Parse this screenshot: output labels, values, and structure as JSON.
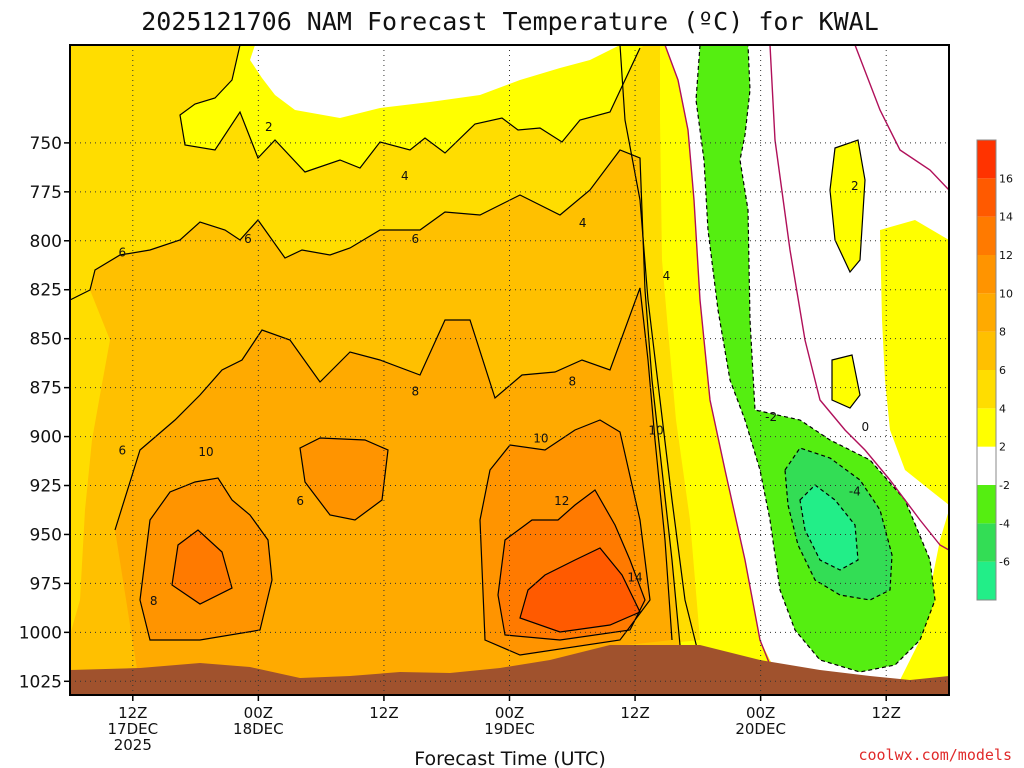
{
  "chart_data": {
    "type": "time-height contour",
    "title": "2025121706 NAM Forecast Temperature (ºC) for KWAL",
    "xlabel": "Forecast Time (UTC)",
    "ylabel": "",
    "y_axis": {
      "units": "hPa",
      "range": [
        700,
        1032
      ],
      "ticks": [
        750,
        775,
        800,
        825,
        850,
        875,
        900,
        925,
        950,
        975,
        1000,
        1025
      ]
    },
    "x_axis": {
      "range_hours": [
        0,
        84
      ],
      "ticks": [
        {
          "hour": 6,
          "lines": [
            "12Z",
            "17DEC",
            "2025"
          ]
        },
        {
          "hour": 18,
          "lines": [
            "00Z",
            "18DEC"
          ]
        },
        {
          "hour": 30,
          "lines": [
            "12Z"
          ]
        },
        {
          "hour": 42,
          "lines": [
            "00Z",
            "19DEC"
          ]
        },
        {
          "hour": 54,
          "lines": [
            "12Z"
          ]
        },
        {
          "hour": 66,
          "lines": [
            "00Z",
            "20DEC"
          ]
        },
        {
          "hour": 78,
          "lines": [
            "12Z"
          ]
        }
      ]
    },
    "colorbar": {
      "levels": [
        -6,
        -4,
        -2,
        2,
        4,
        6,
        8,
        10,
        12,
        14,
        16
      ],
      "bins": [
        {
          "range": "<-6",
          "color": "#22ee88"
        },
        {
          "range": "-6 to -4",
          "color": "#33dd55"
        },
        {
          "range": "-4 to -2",
          "color": "#55ee11"
        },
        {
          "range": "-2 to 2",
          "color": "#ffffff"
        },
        {
          "range": "2 to 4",
          "color": "#ffff00"
        },
        {
          "range": "4 to 6",
          "color": "#ffdd00"
        },
        {
          "range": "6 to 8",
          "color": "#ffc000"
        },
        {
          "range": "8 to 10",
          "color": "#ffaa00"
        },
        {
          "range": "10 to 12",
          "color": "#ff9400"
        },
        {
          "range": "12 to 14",
          "color": "#ff7a00"
        },
        {
          "range": "14 to 16",
          "color": "#ff5a00"
        },
        {
          "range": ">16",
          "color": "#ff3300"
        }
      ]
    },
    "contour_labels": [
      {
        "text": "2",
        "hour": 19,
        "p": 742
      },
      {
        "text": "4",
        "hour": 32,
        "p": 767
      },
      {
        "text": "6",
        "hour": 5,
        "p": 806
      },
      {
        "text": "6",
        "hour": 17,
        "p": 799
      },
      {
        "text": "6",
        "hour": 33,
        "p": 799
      },
      {
        "text": "4",
        "hour": 49,
        "p": 791
      },
      {
        "text": "4",
        "hour": 57,
        "p": 818
      },
      {
        "text": "8",
        "hour": 33,
        "p": 877
      },
      {
        "text": "8",
        "hour": 48,
        "p": 872
      },
      {
        "text": "6",
        "hour": 5,
        "p": 907
      },
      {
        "text": "10",
        "hour": 13,
        "p": 908
      },
      {
        "text": "10",
        "hour": 45,
        "p": 901
      },
      {
        "text": "10",
        "hour": 56,
        "p": 897
      },
      {
        "text": "6",
        "hour": 22,
        "p": 933
      },
      {
        "text": "12",
        "hour": 47,
        "p": 933
      },
      {
        "text": "14",
        "hour": 54,
        "p": 972
      },
      {
        "text": "8",
        "hour": 8,
        "p": 984
      },
      {
        "text": "-2",
        "hour": 67,
        "p": 890
      },
      {
        "text": "0",
        "hour": 76,
        "p": 895
      },
      {
        "text": "-4",
        "hour": 75,
        "p": 928
      },
      {
        "text": "2",
        "hour": 75,
        "p": 772
      }
    ],
    "terrain_color": "#a0522d"
  },
  "credit": "coolwx.com/models"
}
